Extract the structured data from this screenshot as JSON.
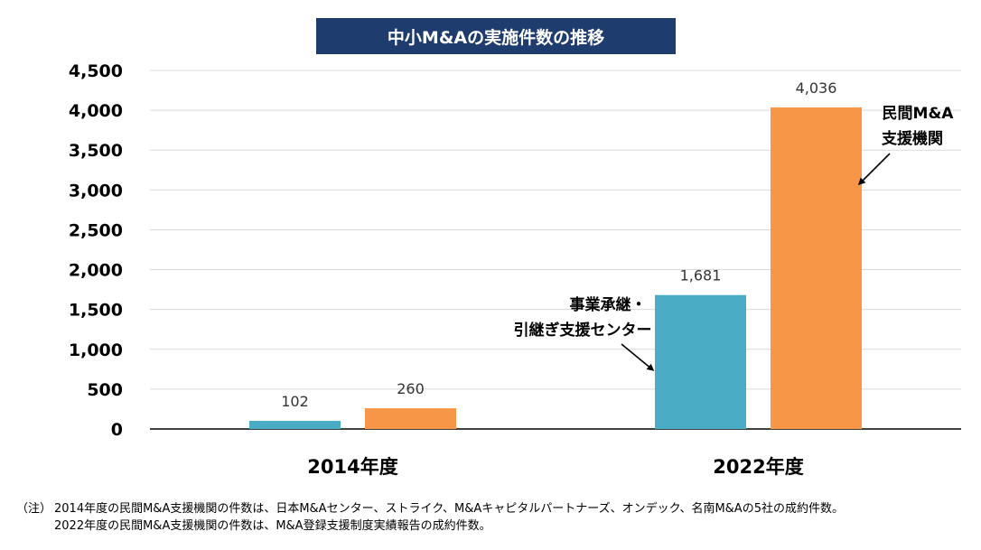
{
  "chart_data": {
    "type": "bar",
    "title": "中小M&Aの実施件数の推移",
    "categories": [
      "2014年度",
      "2022年度"
    ],
    "series": [
      {
        "name": "事業承継・引継ぎ支援センター",
        "color": "#4bacc6",
        "values": [
          102,
          1681
        ],
        "labels": [
          "102",
          "1,681"
        ]
      },
      {
        "name": "民間M&A支援機関",
        "color": "#f79646",
        "values": [
          260,
          4036
        ],
        "labels": [
          "260",
          "4,036"
        ]
      }
    ],
    "ylim": [
      0,
      4500
    ],
    "yticks": [
      0,
      500,
      1000,
      1500,
      2000,
      2500,
      3000,
      3500,
      4000,
      4500
    ],
    "ytick_labels": [
      "0",
      "500",
      "1,000",
      "1,500",
      "2,000",
      "2,500",
      "3,000",
      "3,500",
      "4,000",
      "4,500"
    ],
    "annotations": {
      "center": [
        "事業承継・",
        "引継ぎ支援センター"
      ],
      "private": [
        "民間M&A",
        "支援機関"
      ]
    },
    "grid": true,
    "xlabel": "",
    "ylabel": ""
  },
  "notes": {
    "prefix": "（注）",
    "line1": "2014年度の民間M&A支援機関の件数は、日本M&Aセンター、ストライク、M&Aキャピタルパートナーズ、オンデック、名南M&Aの5社の成約件数。",
    "line2": "2022年度の民間M&A支援機関の件数は、M&A登録支援制度実績報告の成約件数。"
  },
  "colors": {
    "title_bg": "#1f3c6e",
    "grid": "#d9d9d9",
    "axis": "#000000"
  }
}
